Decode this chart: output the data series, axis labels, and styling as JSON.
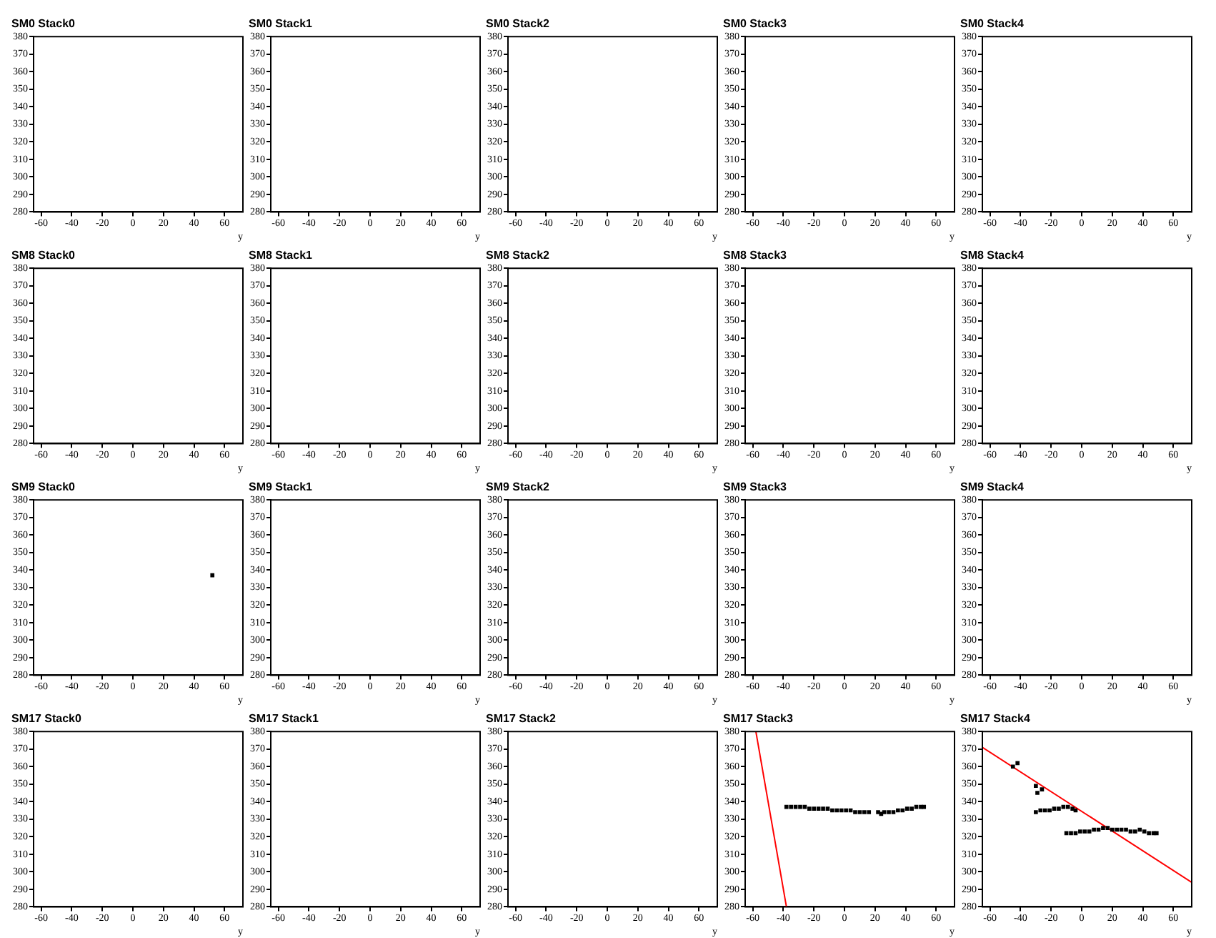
{
  "chart_data": [
    {
      "type": "scatter",
      "title": "SM0 Stack0",
      "xlabel": "y",
      "xlim": [
        -65,
        72
      ],
      "ylim": [
        280,
        380
      ],
      "xticks": [
        -60,
        -40,
        -20,
        0,
        20,
        40,
        60
      ],
      "yticks": [
        280,
        290,
        300,
        310,
        320,
        330,
        340,
        350,
        360,
        370,
        380
      ]
    },
    {
      "type": "scatter",
      "title": "SM0 Stack1",
      "xlabel": "y",
      "xlim": [
        -65,
        72
      ],
      "ylim": [
        280,
        380
      ],
      "xticks": [
        -60,
        -40,
        -20,
        0,
        20,
        40,
        60
      ],
      "yticks": [
        280,
        290,
        300,
        310,
        320,
        330,
        340,
        350,
        360,
        370,
        380
      ]
    },
    {
      "type": "scatter",
      "title": "SM0 Stack2",
      "xlabel": "y",
      "xlim": [
        -65,
        72
      ],
      "ylim": [
        280,
        380
      ],
      "xticks": [
        -60,
        -40,
        -20,
        0,
        20,
        40,
        60
      ],
      "yticks": [
        280,
        290,
        300,
        310,
        320,
        330,
        340,
        350,
        360,
        370,
        380
      ]
    },
    {
      "type": "scatter",
      "title": "SM0 Stack3",
      "xlabel": "y",
      "xlim": [
        -65,
        72
      ],
      "ylim": [
        280,
        380
      ],
      "xticks": [
        -60,
        -40,
        -20,
        0,
        20,
        40,
        60
      ],
      "yticks": [
        280,
        290,
        300,
        310,
        320,
        330,
        340,
        350,
        360,
        370,
        380
      ]
    },
    {
      "type": "scatter",
      "title": "SM0 Stack4",
      "xlabel": "y",
      "xlim": [
        -65,
        72
      ],
      "ylim": [
        280,
        380
      ],
      "xticks": [
        -60,
        -40,
        -20,
        0,
        20,
        40,
        60
      ],
      "yticks": [
        280,
        290,
        300,
        310,
        320,
        330,
        340,
        350,
        360,
        370,
        380
      ]
    },
    {
      "type": "scatter",
      "title": "SM8 Stack0",
      "xlabel": "y",
      "xlim": [
        -65,
        72
      ],
      "ylim": [
        280,
        380
      ],
      "xticks": [
        -60,
        -40,
        -20,
        0,
        20,
        40,
        60
      ],
      "yticks": [
        280,
        290,
        300,
        310,
        320,
        330,
        340,
        350,
        360,
        370,
        380
      ]
    },
    {
      "type": "scatter",
      "title": "SM8 Stack1",
      "xlabel": "y",
      "xlim": [
        -65,
        72
      ],
      "ylim": [
        280,
        380
      ],
      "xticks": [
        -60,
        -40,
        -20,
        0,
        20,
        40,
        60
      ],
      "yticks": [
        280,
        290,
        300,
        310,
        320,
        330,
        340,
        350,
        360,
        370,
        380
      ]
    },
    {
      "type": "scatter",
      "title": "SM8 Stack2",
      "xlabel": "y",
      "xlim": [
        -65,
        72
      ],
      "ylim": [
        280,
        380
      ],
      "xticks": [
        -60,
        -40,
        -20,
        0,
        20,
        40,
        60
      ],
      "yticks": [
        280,
        290,
        300,
        310,
        320,
        330,
        340,
        350,
        360,
        370,
        380
      ]
    },
    {
      "type": "scatter",
      "title": "SM8 Stack3",
      "xlabel": "y",
      "xlim": [
        -65,
        72
      ],
      "ylim": [
        280,
        380
      ],
      "xticks": [
        -60,
        -40,
        -20,
        0,
        20,
        40,
        60
      ],
      "yticks": [
        280,
        290,
        300,
        310,
        320,
        330,
        340,
        350,
        360,
        370,
        380
      ]
    },
    {
      "type": "scatter",
      "title": "SM8 Stack4",
      "xlabel": "y",
      "xlim": [
        -65,
        72
      ],
      "ylim": [
        280,
        380
      ],
      "xticks": [
        -60,
        -40,
        -20,
        0,
        20,
        40,
        60
      ],
      "yticks": [
        280,
        290,
        300,
        310,
        320,
        330,
        340,
        350,
        360,
        370,
        380
      ]
    },
    {
      "type": "scatter",
      "title": "SM9 Stack0",
      "xlabel": "y",
      "xlim": [
        -65,
        72
      ],
      "ylim": [
        280,
        380
      ],
      "xticks": [
        -60,
        -40,
        -20,
        0,
        20,
        40,
        60
      ],
      "yticks": [
        280,
        290,
        300,
        310,
        320,
        330,
        340,
        350,
        360,
        370,
        380
      ],
      "series": [
        {
          "color": "#000000",
          "marker": "square",
          "x": [
            52
          ],
          "values": [
            337
          ]
        }
      ]
    },
    {
      "type": "scatter",
      "title": "SM9 Stack1",
      "xlabel": "y",
      "xlim": [
        -65,
        72
      ],
      "ylim": [
        280,
        380
      ],
      "xticks": [
        -60,
        -40,
        -20,
        0,
        20,
        40,
        60
      ],
      "yticks": [
        280,
        290,
        300,
        310,
        320,
        330,
        340,
        350,
        360,
        370,
        380
      ]
    },
    {
      "type": "scatter",
      "title": "SM9 Stack2",
      "xlabel": "y",
      "xlim": [
        -65,
        72
      ],
      "ylim": [
        280,
        380
      ],
      "xticks": [
        -60,
        -40,
        -20,
        0,
        20,
        40,
        60
      ],
      "yticks": [
        280,
        290,
        300,
        310,
        320,
        330,
        340,
        350,
        360,
        370,
        380
      ]
    },
    {
      "type": "scatter",
      "title": "SM9 Stack3",
      "xlabel": "y",
      "xlim": [
        -65,
        72
      ],
      "ylim": [
        280,
        380
      ],
      "xticks": [
        -60,
        -40,
        -20,
        0,
        20,
        40,
        60
      ],
      "yticks": [
        280,
        290,
        300,
        310,
        320,
        330,
        340,
        350,
        360,
        370,
        380
      ]
    },
    {
      "type": "scatter",
      "title": "SM9 Stack4",
      "xlabel": "y",
      "xlim": [
        -65,
        72
      ],
      "ylim": [
        280,
        380
      ],
      "xticks": [
        -60,
        -40,
        -20,
        0,
        20,
        40,
        60
      ],
      "yticks": [
        280,
        290,
        300,
        310,
        320,
        330,
        340,
        350,
        360,
        370,
        380
      ]
    },
    {
      "type": "scatter",
      "title": "SM17 Stack0",
      "xlabel": "y",
      "xlim": [
        -65,
        72
      ],
      "ylim": [
        280,
        380
      ],
      "xticks": [
        -60,
        -40,
        -20,
        0,
        20,
        40,
        60
      ],
      "yticks": [
        280,
        290,
        300,
        310,
        320,
        330,
        340,
        350,
        360,
        370,
        380
      ]
    },
    {
      "type": "scatter",
      "title": "SM17 Stack1",
      "xlabel": "y",
      "xlim": [
        -65,
        72
      ],
      "ylim": [
        280,
        380
      ],
      "xticks": [
        -60,
        -40,
        -20,
        0,
        20,
        40,
        60
      ],
      "yticks": [
        280,
        290,
        300,
        310,
        320,
        330,
        340,
        350,
        360,
        370,
        380
      ]
    },
    {
      "type": "scatter",
      "title": "SM17 Stack2",
      "xlabel": "y",
      "xlim": [
        -65,
        72
      ],
      "ylim": [
        280,
        380
      ],
      "xticks": [
        -60,
        -40,
        -20,
        0,
        20,
        40,
        60
      ],
      "yticks": [
        280,
        290,
        300,
        310,
        320,
        330,
        340,
        350,
        360,
        370,
        380
      ]
    },
    {
      "type": "scatter",
      "title": "SM17 Stack3",
      "xlabel": "y",
      "xlim": [
        -65,
        72
      ],
      "ylim": [
        280,
        380
      ],
      "xticks": [
        -60,
        -40,
        -20,
        0,
        20,
        40,
        60
      ],
      "yticks": [
        280,
        290,
        300,
        310,
        320,
        330,
        340,
        350,
        360,
        370,
        380
      ],
      "series": [
        {
          "color": "#000000",
          "marker": "square",
          "x": [
            -38,
            -35,
            -32,
            -29,
            -26,
            -23,
            -20,
            -17,
            -14,
            -11,
            -8,
            -5,
            -2,
            1,
            4,
            7,
            10,
            13,
            16,
            22,
            24,
            26,
            29,
            32,
            35,
            38,
            41,
            44,
            47,
            50,
            52
          ],
          "values": [
            337,
            337,
            337,
            337,
            337,
            336,
            336,
            336,
            336,
            336,
            335,
            335,
            335,
            335,
            335,
            334,
            334,
            334,
            334,
            334,
            333,
            334,
            334,
            334,
            335,
            335,
            336,
            336,
            337,
            337,
            337
          ]
        },
        {
          "type": "line",
          "color": "#ff0000",
          "x": [
            -58,
            -38
          ],
          "values": [
            380,
            280
          ]
        }
      ]
    },
    {
      "type": "scatter",
      "title": "SM17 Stack4",
      "xlabel": "y",
      "xlim": [
        -65,
        72
      ],
      "ylim": [
        280,
        380
      ],
      "xticks": [
        -60,
        -40,
        -20,
        0,
        20,
        40,
        60
      ],
      "yticks": [
        280,
        290,
        300,
        310,
        320,
        330,
        340,
        350,
        360,
        370,
        380
      ],
      "series": [
        {
          "color": "#000000",
          "marker": "square",
          "x": [
            -45,
            -42,
            -30,
            -26,
            -29,
            -30,
            -27,
            -24,
            -21,
            -18,
            -15,
            -12,
            -9,
            -6,
            -4,
            -10,
            -7,
            -4,
            -1,
            2,
            5,
            8,
            11,
            14,
            17,
            20,
            23,
            26,
            29,
            32,
            35,
            38,
            41,
            44,
            47,
            49
          ],
          "values": [
            360,
            362,
            349,
            347,
            345,
            334,
            335,
            335,
            335,
            336,
            336,
            337,
            337,
            336,
            335,
            322,
            322,
            322,
            323,
            323,
            323,
            324,
            324,
            325,
            325,
            324,
            324,
            324,
            324,
            323,
            323,
            324,
            323,
            322,
            322,
            322
          ]
        },
        {
          "type": "line",
          "color": "#ff0000",
          "x": [
            -65,
            72
          ],
          "values": [
            371,
            294
          ]
        }
      ]
    }
  ]
}
